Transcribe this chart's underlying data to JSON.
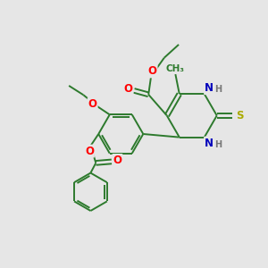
{
  "bg_color": "#e6e6e6",
  "bond_color": "#2d7a2d",
  "atom_colors": {
    "O": "#ff0000",
    "N": "#0000bb",
    "S": "#aaaa00",
    "H": "#777777",
    "C": "#2d7a2d"
  },
  "font_size_atom": 8.5,
  "fig_bg": "#e6e6e6",
  "lw": 1.4,
  "dbl_off": 0.08
}
